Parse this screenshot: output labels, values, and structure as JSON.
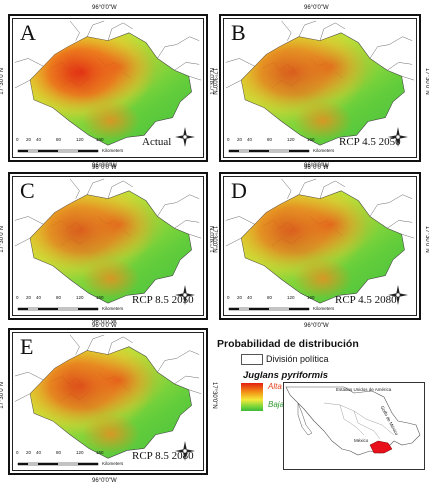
{
  "coords": {
    "longitude": "96°0'0\"W",
    "latitude": "17°30'0\"N"
  },
  "scale_ticks": [
    "0",
    "20",
    "40",
    "80",
    "120",
    "160"
  ],
  "scale_unit": "Kilometers",
  "panels": [
    {
      "letter": "A",
      "scenario": "Actual"
    },
    {
      "letter": "B",
      "scenario": "RCP 4.5 2050"
    },
    {
      "letter": "C",
      "scenario": "RCP 8.5 2050"
    },
    {
      "letter": "D",
      "scenario": "RCP 4.5 2080"
    },
    {
      "letter": "E",
      "scenario": "RCP 8.5 2080"
    }
  ],
  "legend": {
    "title": "Probabilidad de distribución",
    "political_division": "División política",
    "species": "Juglans pyriformis",
    "high": "Alta",
    "low": "Baja"
  },
  "inset": {
    "usa_label": "Estados Unidos de América",
    "gulf_label": "Golfo de México",
    "mexico_label": "México"
  },
  "colors": {
    "high": "#e32010",
    "mid_high": "#f39a17",
    "mid": "#f4e93a",
    "low": "#72d43a",
    "lowest": "#3fb93a",
    "highlight_state": "#e8101b"
  }
}
